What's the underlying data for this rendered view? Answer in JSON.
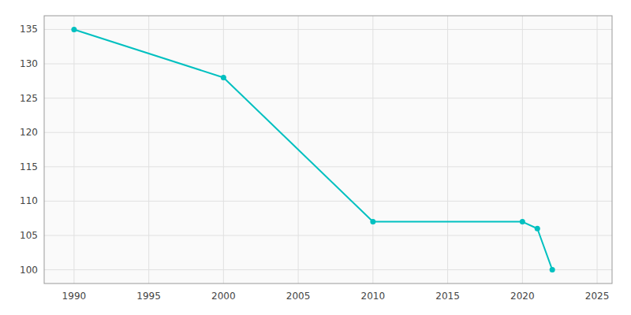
{
  "chart_data": {
    "type": "line",
    "x": [
      1990,
      2000,
      2010,
      2020,
      2021,
      2022
    ],
    "values": [
      135,
      128,
      107,
      107,
      106,
      100
    ],
    "color": "#00c0c0",
    "marker": "circle",
    "xlim": [
      1988,
      2026
    ],
    "ylim": [
      98,
      137
    ],
    "xticks": [
      1990,
      1995,
      2000,
      2005,
      2010,
      2015,
      2020,
      2025
    ],
    "yticks": [
      100,
      105,
      110,
      115,
      120,
      125,
      130,
      135
    ],
    "grid": true
  }
}
